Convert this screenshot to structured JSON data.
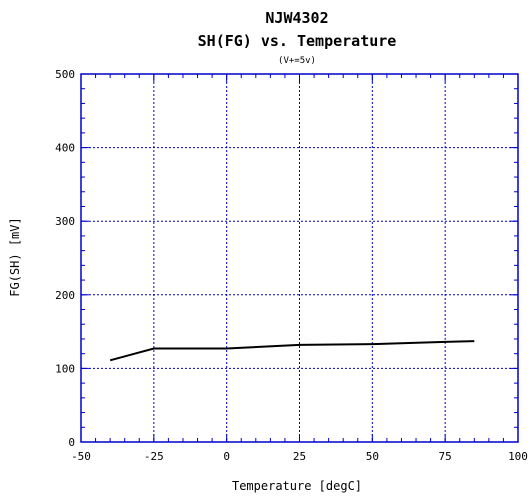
{
  "chart_data": {
    "type": "line",
    "title": "NJW4302",
    "subtitle": "SH(FG) vs. Temperature",
    "condition": "(V+=5v)",
    "xlabel": "Temperature [degC]",
    "ylabel": "FG(SH) [mV]",
    "xlim": [
      -50,
      100
    ],
    "ylim": [
      0,
      500
    ],
    "x_ticks": [
      -50,
      -25,
      0,
      25,
      50,
      75,
      100
    ],
    "y_ticks": [
      0,
      100,
      200,
      300,
      400,
      500
    ],
    "x_tick_labels": [
      "-50",
      "-25",
      "0",
      "25",
      "50",
      "75",
      "100"
    ],
    "y_tick_labels": [
      "0",
      "100",
      "200",
      "300",
      "400",
      "500"
    ],
    "grid": true,
    "legend": "none",
    "series": [
      {
        "x": [
          -40,
          -25,
          0,
          25,
          50,
          75,
          85
        ],
        "y": [
          111,
          127,
          127,
          132,
          133,
          136,
          137
        ]
      }
    ],
    "colors": {
      "grid": "#0000cc",
      "frame": "#0000cc",
      "line": "#000000",
      "text": "#000000"
    }
  }
}
